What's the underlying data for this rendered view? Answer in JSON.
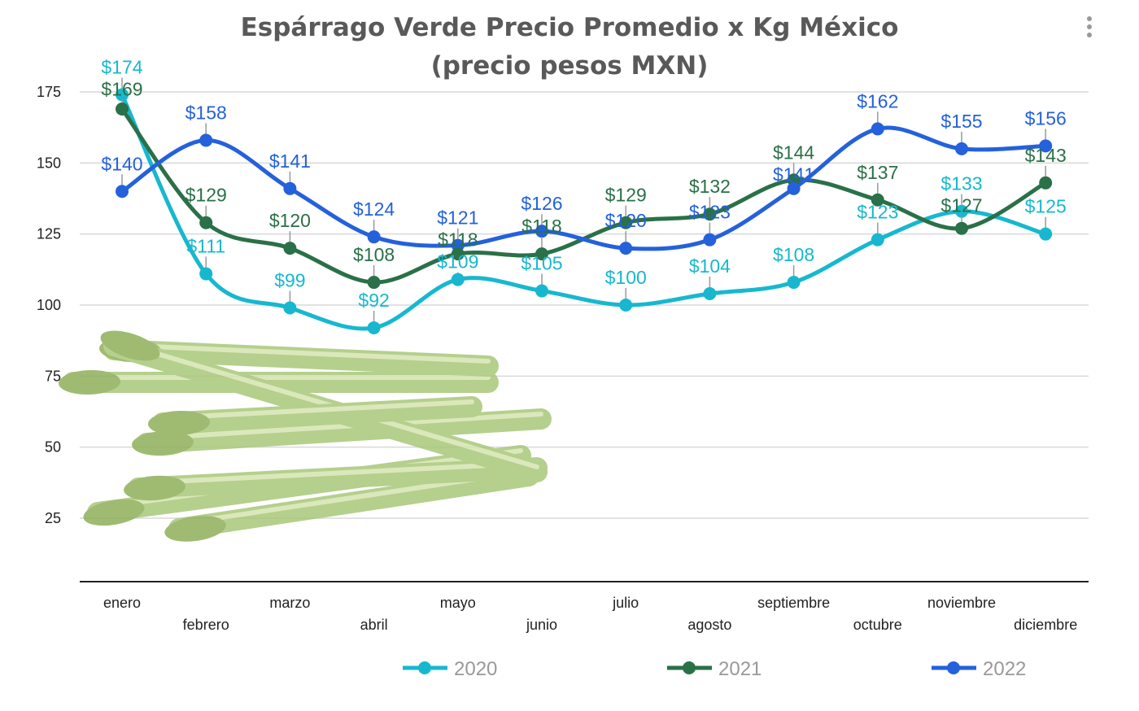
{
  "chart_data": {
    "type": "line",
    "title": "Espárrago Verde Precio Promedio x Kg México",
    "subtitle": "(precio pesos MXN)",
    "categories": [
      "enero",
      "febrero",
      "marzo",
      "abril",
      "mayo",
      "junio",
      "julio",
      "agosto",
      "septiembre",
      "octubre",
      "noviembre",
      "diciembre"
    ],
    "yticks": [
      25,
      50,
      75,
      100,
      125,
      150,
      175
    ],
    "ylim": [
      0,
      180
    ],
    "grid": true,
    "legend": "bottom",
    "label_prefix": "$",
    "series": [
      {
        "name": "2020",
        "color": "#17b8cf",
        "values": [
          174,
          111,
          99,
          92,
          109,
          105,
          100,
          104,
          108,
          123,
          133,
          125
        ]
      },
      {
        "name": "2021",
        "color": "#2a7048",
        "values": [
          169,
          129,
          120,
          108,
          118,
          118,
          129,
          132,
          144,
          137,
          127,
          143
        ]
      },
      {
        "name": "2022",
        "color": "#2461db",
        "values": [
          140,
          158,
          141,
          124,
          121,
          126,
          120,
          123,
          141,
          162,
          155,
          156
        ]
      }
    ]
  },
  "menu_icon": "more-vertical-icon",
  "image": "asparagus-bunch"
}
